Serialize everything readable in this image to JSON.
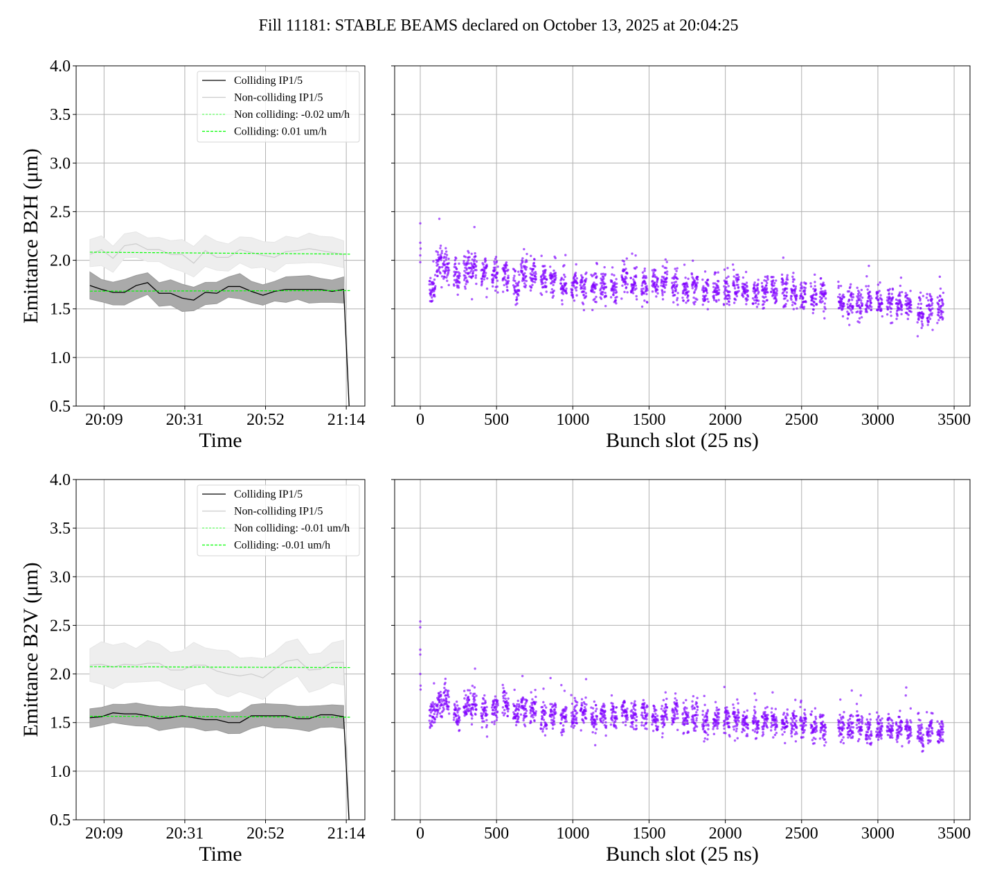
{
  "title": "Fill 11181: STABLE BEAMS declared on October 13, 2025 at 20:04:25",
  "colors": {
    "colliding": "#000000",
    "noncolliding": "#cccccc",
    "fit": "#00ff00",
    "scatter": "#7f00ff",
    "grid": "#b0b0b0"
  },
  "chart_data": [
    {
      "type": "line",
      "panel": "top-left",
      "ylabel": "Emittance B2H (μm)",
      "xlabel": "Time",
      "ylim": [
        0.5,
        4.0
      ],
      "yticks": [
        0.5,
        1.0,
        1.5,
        2.0,
        2.5,
        3.0,
        3.5,
        4.0
      ],
      "ytick_labels": [
        "0.5",
        "1.0",
        "1.5",
        "2.0",
        "2.5",
        "3.0",
        "3.5",
        "4.0"
      ],
      "xlim_minutes_after_20h": [
        1.9,
        79.5
      ],
      "xticks": [
        9.4,
        31.1,
        52.8,
        74.5
      ],
      "xtick_labels": [
        "20:09",
        "20:31",
        "20:52",
        "21:14"
      ],
      "t_start": 5.6,
      "t_step": 3.1,
      "series": [
        {
          "name": "Colliding IP1/5",
          "values": [
            1.74,
            1.7,
            1.67,
            1.67,
            1.74,
            1.77,
            1.66,
            1.66,
            1.61,
            1.59,
            1.67,
            1.66,
            1.73,
            1.73,
            1.68,
            1.64,
            1.68,
            1.7,
            1.7,
            1.7,
            1.7,
            1.68,
            1.7
          ],
          "band": 0.12,
          "end_drop": 0.3
        },
        {
          "name": "Non-colliding IP1/5",
          "values": [
            2.06,
            2.11,
            2.02,
            2.15,
            2.17,
            2.11,
            2.11,
            2.06,
            2.06,
            1.97,
            2.1,
            2.03,
            2.03,
            2.11,
            2.08,
            2.05,
            2.03,
            2.09,
            2.1,
            2.12,
            2.1,
            2.08,
            2.06
          ],
          "band": 0.15,
          "end_drop": 0.3
        }
      ],
      "fits": [
        {
          "name": "Non colliding: -0.02 um/h",
          "start": 2.083,
          "end": 2.063
        },
        {
          "name": "Colliding: 0.01 um/h",
          "start": 1.682,
          "end": 1.688
        }
      ],
      "legend": "top-right"
    },
    {
      "type": "scatter",
      "panel": "top-right",
      "xlabel": "Bunch slot (25 ns)",
      "xlim": [
        -168,
        3604
      ],
      "xticks": [
        0,
        500,
        1000,
        1500,
        2000,
        2500,
        3000,
        3500
      ],
      "xtick_labels": [
        "0",
        "500",
        "1000",
        "1500",
        "2000",
        "2500",
        "3000",
        "3500"
      ],
      "ylim": [
        0.5,
        4.0
      ],
      "pilot": [
        [
          0,
          2.38
        ],
        [
          0,
          2.18
        ],
        [
          0,
          2.05
        ],
        [
          0,
          1.98
        ],
        [
          2,
          2.12
        ]
      ],
      "batch_width": 40,
      "noise": 0.08,
      "batches": [
        [
          60,
          1.72
        ],
        [
          105,
          1.96
        ],
        [
          150,
          1.93
        ],
        [
          220,
          1.84
        ],
        [
          285,
          1.9
        ],
        [
          330,
          1.92
        ],
        [
          400,
          1.88
        ],
        [
          470,
          1.86
        ],
        [
          540,
          1.84
        ],
        [
          610,
          1.72
        ],
        [
          660,
          1.88
        ],
        [
          720,
          1.84
        ],
        [
          790,
          1.8
        ],
        [
          850,
          1.8
        ],
        [
          920,
          1.74
        ],
        [
          990,
          1.75
        ],
        [
          1050,
          1.72
        ],
        [
          1120,
          1.74
        ],
        [
          1180,
          1.72
        ],
        [
          1250,
          1.7
        ],
        [
          1320,
          1.8
        ],
        [
          1380,
          1.76
        ],
        [
          1450,
          1.74
        ],
        [
          1520,
          1.77
        ],
        [
          1580,
          1.78
        ],
        [
          1650,
          1.74
        ],
        [
          1720,
          1.7
        ],
        [
          1780,
          1.72
        ],
        [
          1850,
          1.68
        ],
        [
          1920,
          1.7
        ],
        [
          1990,
          1.68
        ],
        [
          2050,
          1.72
        ],
        [
          2110,
          1.7
        ],
        [
          2180,
          1.66
        ],
        [
          2240,
          1.7
        ],
        [
          2300,
          1.68
        ],
        [
          2370,
          1.7
        ],
        [
          2430,
          1.66
        ],
        [
          2490,
          1.64
        ],
        [
          2560,
          1.62
        ],
        [
          2620,
          1.66
        ],
        [
          2740,
          1.58
        ],
        [
          2800,
          1.56
        ],
        [
          2860,
          1.55
        ],
        [
          2920,
          1.56
        ],
        [
          2990,
          1.57
        ],
        [
          3060,
          1.55
        ],
        [
          3120,
          1.56
        ],
        [
          3180,
          1.54
        ],
        [
          3260,
          1.48
        ],
        [
          3320,
          1.5
        ],
        [
          3390,
          1.52
        ]
      ]
    },
    {
      "type": "line",
      "panel": "bottom-left",
      "ylabel": "Emittance B2V (μm)",
      "xlabel": "Time",
      "ylim": [
        0.5,
        4.0
      ],
      "yticks": [
        0.5,
        1.0,
        1.5,
        2.0,
        2.5,
        3.0,
        3.5,
        4.0
      ],
      "ytick_labels": [
        "0.5",
        "1.0",
        "1.5",
        "2.0",
        "2.5",
        "3.0",
        "3.5",
        "4.0"
      ],
      "xlim_minutes_after_20h": [
        1.9,
        79.5
      ],
      "xticks": [
        9.4,
        31.1,
        52.8,
        74.5
      ],
      "xtick_labels": [
        "20:09",
        "20:31",
        "20:52",
        "21:14"
      ],
      "t_start": 5.6,
      "t_step": 3.1,
      "series": [
        {
          "name": "Colliding IP1/5",
          "values": [
            1.55,
            1.56,
            1.6,
            1.59,
            1.59,
            1.57,
            1.54,
            1.55,
            1.57,
            1.55,
            1.53,
            1.53,
            1.5,
            1.5,
            1.57,
            1.57,
            1.57,
            1.57,
            1.54,
            1.54,
            1.58,
            1.58,
            1.56
          ],
          "band": 0.11,
          "end_drop": 0.3
        },
        {
          "name": "Non-colliding IP1/5",
          "values": [
            2.09,
            2.1,
            2.07,
            2.1,
            2.09,
            2.11,
            2.11,
            2.04,
            2.04,
            2.09,
            2.09,
            2.03,
            2.0,
            1.98,
            2.0,
            1.96,
            2.05,
            2.13,
            2.15,
            2.04,
            2.05,
            2.12,
            2.12
          ],
          "band": 0.2,
          "end_drop": 0.3
        }
      ],
      "fits": [
        {
          "name": "Non colliding: -0.01 um/h",
          "start": 2.075,
          "end": 2.065
        },
        {
          "name": "Colliding: -0.01 um/h",
          "start": 1.565,
          "end": 1.555
        }
      ],
      "legend": "top-right"
    },
    {
      "type": "scatter",
      "panel": "bottom-right",
      "xlabel": "Bunch slot (25 ns)",
      "xlim": [
        -168,
        3604
      ],
      "xticks": [
        0,
        500,
        1000,
        1500,
        2000,
        2500,
        3000,
        3500
      ],
      "xtick_labels": [
        "0",
        "500",
        "1000",
        "1500",
        "2000",
        "2500",
        "3000",
        "3500"
      ],
      "ylim": [
        0.5,
        4.0
      ],
      "pilot": [
        [
          0,
          2.54
        ],
        [
          0,
          2.48
        ],
        [
          0,
          2.25
        ],
        [
          0,
          2.2
        ],
        [
          0,
          2.0
        ],
        [
          2,
          1.88
        ],
        [
          2,
          1.84
        ]
      ],
      "batch_width": 40,
      "noise": 0.07,
      "batches": [
        [
          60,
          1.6
        ],
        [
          105,
          1.7
        ],
        [
          150,
          1.72
        ],
        [
          220,
          1.58
        ],
        [
          285,
          1.66
        ],
        [
          330,
          1.68
        ],
        [
          400,
          1.6
        ],
        [
          470,
          1.66
        ],
        [
          540,
          1.68
        ],
        [
          610,
          1.58
        ],
        [
          660,
          1.66
        ],
        [
          720,
          1.64
        ],
        [
          790,
          1.56
        ],
        [
          850,
          1.6
        ],
        [
          920,
          1.56
        ],
        [
          990,
          1.58
        ],
        [
          1050,
          1.6
        ],
        [
          1120,
          1.54
        ],
        [
          1180,
          1.58
        ],
        [
          1250,
          1.58
        ],
        [
          1320,
          1.6
        ],
        [
          1380,
          1.58
        ],
        [
          1450,
          1.58
        ],
        [
          1520,
          1.54
        ],
        [
          1580,
          1.58
        ],
        [
          1650,
          1.6
        ],
        [
          1720,
          1.54
        ],
        [
          1780,
          1.56
        ],
        [
          1850,
          1.5
        ],
        [
          1920,
          1.52
        ],
        [
          1990,
          1.52
        ],
        [
          2050,
          1.54
        ],
        [
          2110,
          1.5
        ],
        [
          2180,
          1.48
        ],
        [
          2240,
          1.52
        ],
        [
          2300,
          1.52
        ],
        [
          2370,
          1.5
        ],
        [
          2430,
          1.5
        ],
        [
          2490,
          1.48
        ],
        [
          2560,
          1.44
        ],
        [
          2620,
          1.46
        ],
        [
          2740,
          1.46
        ],
        [
          2800,
          1.46
        ],
        [
          2860,
          1.48
        ],
        [
          2920,
          1.4
        ],
        [
          2990,
          1.44
        ],
        [
          3060,
          1.44
        ],
        [
          3120,
          1.44
        ],
        [
          3180,
          1.44
        ],
        [
          3260,
          1.4
        ],
        [
          3320,
          1.42
        ],
        [
          3390,
          1.4
        ]
      ]
    }
  ]
}
